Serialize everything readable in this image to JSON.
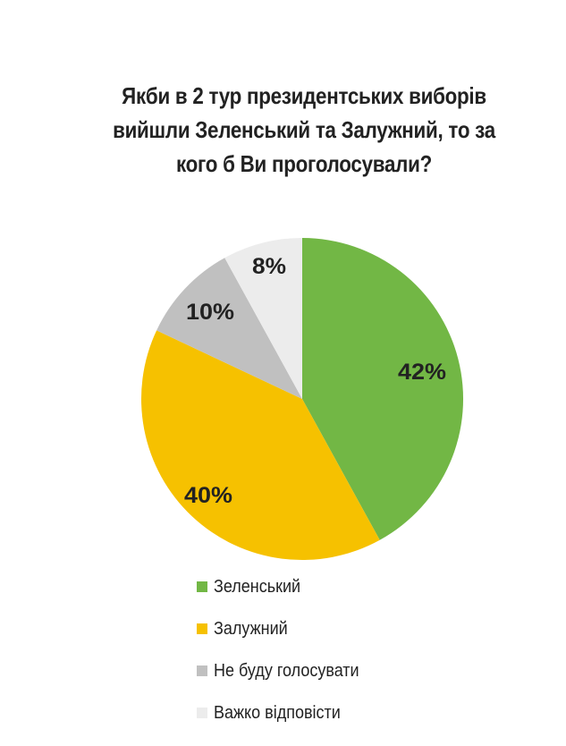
{
  "chart_data": {
    "type": "pie",
    "title": "Якби в 2 тур президентських виборів вийшли Зеленський та Залужний, то за кого б Ви проголосували?",
    "title_lines": [
      "Якби в 2 тур президентських виборів",
      "вийшли Зеленський та Залужний, то за",
      "кого б Ви проголосували?"
    ],
    "start_angle_deg": 0,
    "direction": "clockwise",
    "legend_placement": "bottom",
    "slices": [
      {
        "name": "Зеленський",
        "value": 42,
        "label": "42%",
        "color": "#72b745"
      },
      {
        "name": "Залужний",
        "value": 40,
        "label": "40%",
        "color": "#f6c100"
      },
      {
        "name": "Не буду голосувати",
        "value": 10,
        "label": "10%",
        "color": "#c0c0c0"
      },
      {
        "name": "Важко відповісти",
        "value": 8,
        "label": "8%",
        "color": "#ececec"
      }
    ]
  }
}
